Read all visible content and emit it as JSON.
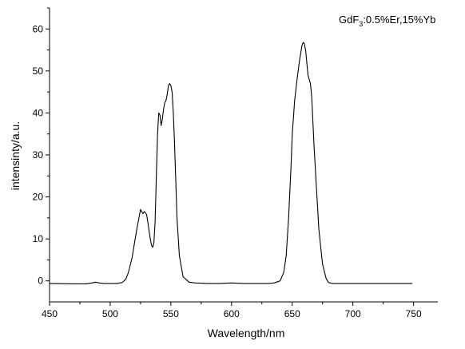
{
  "chart_data": {
    "type": "line",
    "title": "",
    "xlabel": "Wavelength/nm",
    "ylabel": "intensinty/a.u.",
    "xlim": [
      450,
      770
    ],
    "ylim": [
      -5,
      65
    ],
    "xticks": [
      450,
      500,
      550,
      600,
      650,
      700,
      750
    ],
    "yticks": [
      0,
      10,
      20,
      30,
      40,
      50,
      60
    ],
    "xtick_labels": [
      "450",
      "500",
      "550",
      "600",
      "650",
      "700",
      "750"
    ],
    "ytick_labels": [
      "0",
      "10",
      "20",
      "30",
      "40",
      "50",
      "60"
    ],
    "grid": false,
    "legend": null,
    "line_color": "#000000",
    "annotation": {
      "prefix": "GdF",
      "subscript": "3",
      "suffix": ":0.5%Er,15%Yb"
    },
    "series": [
      {
        "name": "",
        "x": [
          450,
          470,
          480,
          485,
          488,
          491,
          495,
          500,
          505,
          510,
          513,
          515,
          518,
          520,
          522,
          524,
          525,
          526,
          527,
          528,
          529,
          530,
          531,
          532,
          533,
          534,
          535,
          536,
          537,
          538,
          539,
          540,
          541,
          542,
          543,
          544,
          545,
          546,
          547,
          548,
          549,
          550,
          551,
          552,
          553,
          554,
          555,
          557,
          560,
          565,
          570,
          580,
          590,
          600,
          610,
          620,
          630,
          635,
          640,
          643,
          645,
          647,
          649,
          650,
          652,
          654,
          656,
          658,
          659,
          660,
          661,
          662,
          663,
          664,
          665,
          666,
          667,
          668,
          670,
          672,
          675,
          678,
          680,
          683,
          686,
          690,
          700,
          720,
          749
        ],
        "y": [
          -0.6,
          -0.7,
          -0.7,
          -0.5,
          -0.3,
          -0.5,
          -0.6,
          -0.6,
          -0.6,
          -0.4,
          0.5,
          2,
          5.5,
          9,
          12.5,
          15.5,
          17,
          16.5,
          16,
          16.5,
          16.2,
          15.8,
          14,
          12,
          10,
          8.5,
          8,
          9,
          14,
          25,
          35,
          40,
          39.5,
          37,
          38.5,
          41,
          42.5,
          43,
          44.5,
          46.5,
          47,
          46.5,
          45,
          40,
          33,
          24,
          15,
          6,
          1,
          -0.3,
          -0.5,
          -0.6,
          -0.6,
          -0.5,
          -0.6,
          -0.6,
          -0.6,
          -0.5,
          0,
          2,
          6,
          15,
          27,
          35,
          43,
          48,
          52.5,
          56,
          56.8,
          56.5,
          55,
          52,
          49,
          48,
          47,
          44,
          38,
          32,
          22,
          12,
          4,
          0.5,
          -0.4,
          -0.6,
          -0.6,
          -0.6,
          -0.6,
          -0.6,
          -0.6
        ]
      }
    ]
  }
}
